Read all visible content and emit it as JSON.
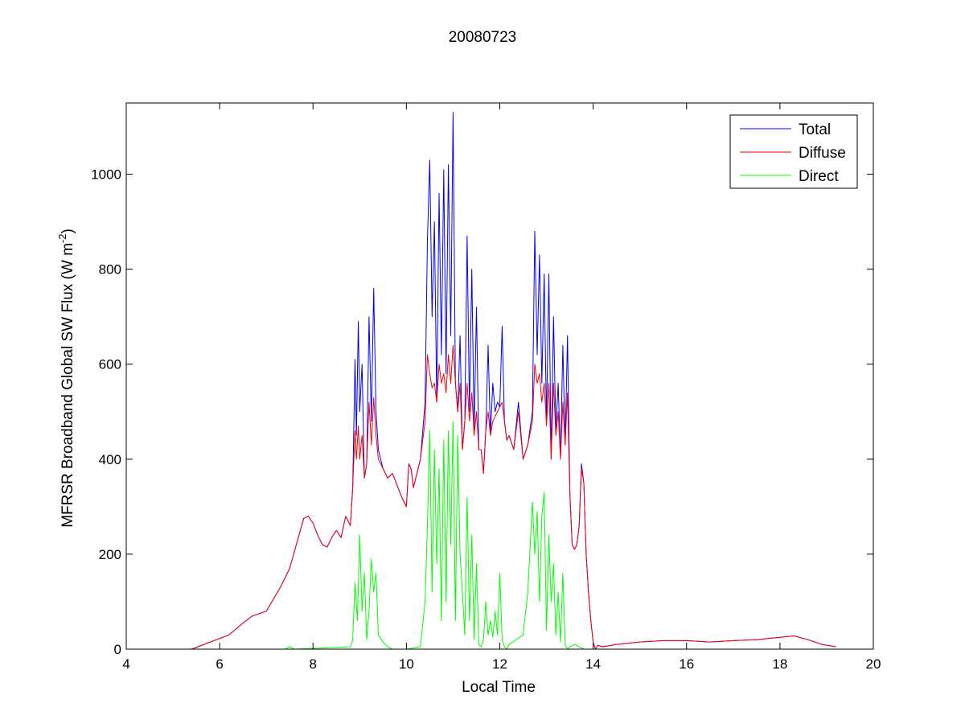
{
  "chart_data": {
    "type": "line",
    "title": "20080723",
    "xlabel": "Local Time",
    "ylabel": "MFRSR Broadband Global SW Flux (W m",
    "ylabel_exp": "-2",
    "ylabel_tail": ")",
    "xlim": [
      4,
      20
    ],
    "ylim": [
      0,
      1150
    ],
    "xticks": [
      4,
      6,
      8,
      10,
      12,
      14,
      16,
      18,
      20
    ],
    "yticks": [
      0,
      200,
      400,
      600,
      800,
      1000
    ],
    "grid": false,
    "legend_position": "top-right",
    "series": [
      {
        "name": "Total",
        "color": "#0000ff",
        "x": [
          5.4,
          5.8,
          6.2,
          6.5,
          6.7,
          7.0,
          7.3,
          7.5,
          7.7,
          7.8,
          7.9,
          8.0,
          8.1,
          8.2,
          8.3,
          8.4,
          8.5,
          8.6,
          8.7,
          8.8,
          8.85,
          8.9,
          8.93,
          8.97,
          9.0,
          9.05,
          9.1,
          9.15,
          9.2,
          9.25,
          9.3,
          9.35,
          9.4,
          9.5,
          9.6,
          9.7,
          9.8,
          9.9,
          10.0,
          10.05,
          10.1,
          10.15,
          10.2,
          10.3,
          10.4,
          10.45,
          10.5,
          10.55,
          10.6,
          10.65,
          10.7,
          10.75,
          10.8,
          10.85,
          10.9,
          10.95,
          11.0,
          11.05,
          11.1,
          11.15,
          11.2,
          11.25,
          11.3,
          11.35,
          11.4,
          11.45,
          11.5,
          11.55,
          11.6,
          11.65,
          11.7,
          11.75,
          11.8,
          11.85,
          11.9,
          11.95,
          12.0,
          12.05,
          12.1,
          12.15,
          12.2,
          12.3,
          12.4,
          12.5,
          12.6,
          12.7,
          12.75,
          12.8,
          12.85,
          12.9,
          12.95,
          13.0,
          13.05,
          13.1,
          13.15,
          13.2,
          13.25,
          13.3,
          13.35,
          13.4,
          13.45,
          13.5,
          13.55,
          13.6,
          13.65,
          13.7,
          13.75,
          13.8,
          13.85,
          13.9,
          13.95,
          14.0,
          14.05,
          14.1,
          14.2,
          14.5,
          15.0,
          15.5,
          16.0,
          16.5,
          17.0,
          17.5,
          18.0,
          18.3,
          18.6,
          18.9,
          19.2
        ],
        "y": [
          0,
          15,
          30,
          55,
          70,
          80,
          130,
          170,
          240,
          275,
          280,
          265,
          240,
          220,
          215,
          235,
          250,
          235,
          280,
          260,
          340,
          610,
          450,
          690,
          500,
          600,
          360,
          390,
          700,
          480,
          760,
          500,
          420,
          380,
          360,
          370,
          345,
          320,
          300,
          390,
          380,
          340,
          360,
          400,
          520,
          860,
          1030,
          700,
          900,
          520,
          960,
          620,
          1010,
          580,
          1020,
          660,
          1130,
          560,
          500,
          660,
          420,
          480,
          870,
          500,
          800,
          460,
          720,
          420,
          420,
          370,
          460,
          640,
          450,
          560,
          500,
          520,
          510,
          680,
          480,
          440,
          450,
          420,
          520,
          400,
          430,
          500,
          880,
          620,
          830,
          560,
          790,
          480,
          790,
          400,
          700,
          460,
          560,
          400,
          640,
          430,
          660,
          330,
          220,
          210,
          220,
          260,
          390,
          350,
          200,
          120,
          60,
          15,
          0,
          8,
          5,
          10,
          15,
          18,
          18,
          15,
          18,
          20,
          25,
          28,
          20,
          10,
          5
        ]
      },
      {
        "name": "Diffuse",
        "color": "#ff0000",
        "x": [
          5.4,
          5.8,
          6.2,
          6.5,
          6.7,
          7.0,
          7.3,
          7.5,
          7.7,
          7.8,
          7.9,
          8.0,
          8.1,
          8.2,
          8.3,
          8.4,
          8.5,
          8.6,
          8.7,
          8.8,
          8.85,
          8.9,
          8.93,
          8.97,
          9.0,
          9.05,
          9.1,
          9.15,
          9.2,
          9.25,
          9.3,
          9.35,
          9.4,
          9.5,
          9.6,
          9.7,
          9.8,
          9.9,
          10.0,
          10.05,
          10.1,
          10.15,
          10.2,
          10.3,
          10.4,
          10.45,
          10.5,
          10.55,
          10.6,
          10.65,
          10.7,
          10.75,
          10.8,
          10.85,
          10.9,
          10.95,
          11.0,
          11.05,
          11.1,
          11.15,
          11.2,
          11.25,
          11.3,
          11.35,
          11.4,
          11.45,
          11.5,
          11.55,
          11.6,
          11.65,
          11.7,
          11.75,
          11.8,
          11.85,
          11.9,
          11.95,
          12.0,
          12.05,
          12.1,
          12.15,
          12.2,
          12.3,
          12.4,
          12.5,
          12.6,
          12.7,
          12.75,
          12.8,
          12.85,
          12.9,
          12.95,
          13.0,
          13.05,
          13.1,
          13.15,
          13.2,
          13.25,
          13.3,
          13.35,
          13.4,
          13.45,
          13.5,
          13.55,
          13.6,
          13.65,
          13.7,
          13.75,
          13.8,
          13.85,
          13.9,
          13.95,
          14.0,
          14.05,
          14.1,
          14.2,
          14.5,
          15.0,
          15.5,
          16.0,
          16.5,
          17.0,
          17.5,
          18.0,
          18.3,
          18.6,
          18.9,
          19.2
        ],
        "y": [
          0,
          15,
          30,
          55,
          70,
          80,
          130,
          170,
          240,
          275,
          280,
          265,
          240,
          220,
          215,
          235,
          250,
          235,
          280,
          260,
          340,
          460,
          400,
          470,
          400,
          450,
          360,
          390,
          520,
          430,
          530,
          450,
          400,
          380,
          360,
          370,
          345,
          320,
          300,
          390,
          380,
          340,
          360,
          400,
          480,
          620,
          580,
          550,
          560,
          520,
          600,
          560,
          580,
          540,
          620,
          560,
          640,
          560,
          500,
          560,
          420,
          480,
          560,
          480,
          540,
          450,
          500,
          420,
          420,
          370,
          460,
          500,
          450,
          480,
          490,
          500,
          510,
          520,
          480,
          440,
          450,
          420,
          500,
          400,
          430,
          480,
          600,
          560,
          580,
          520,
          560,
          470,
          560,
          400,
          560,
          450,
          500,
          400,
          520,
          430,
          540,
          330,
          220,
          210,
          220,
          260,
          380,
          350,
          200,
          120,
          60,
          15,
          0,
          8,
          5,
          10,
          15,
          18,
          18,
          15,
          18,
          20,
          25,
          28,
          20,
          10,
          5
        ]
      },
      {
        "name": "Direct",
        "color": "#00ff00",
        "x": [
          5.4,
          7.4,
          7.5,
          7.6,
          8.8,
          8.85,
          8.9,
          8.95,
          9.0,
          9.05,
          9.1,
          9.15,
          9.2,
          9.25,
          9.3,
          9.35,
          9.4,
          9.5,
          9.6,
          9.7,
          10.0,
          10.3,
          10.4,
          10.45,
          10.5,
          10.55,
          10.6,
          10.65,
          10.7,
          10.75,
          10.8,
          10.85,
          10.9,
          10.95,
          11.0,
          11.05,
          11.1,
          11.15,
          11.2,
          11.25,
          11.3,
          11.35,
          11.4,
          11.45,
          11.5,
          11.55,
          11.6,
          11.65,
          11.7,
          11.75,
          11.8,
          11.85,
          11.9,
          11.95,
          12.0,
          12.05,
          12.1,
          12.15,
          12.2,
          12.5,
          12.6,
          12.7,
          12.75,
          12.8,
          12.85,
          12.9,
          12.95,
          13.0,
          13.05,
          13.1,
          13.15,
          13.2,
          13.25,
          13.3,
          13.35,
          13.4,
          13.45,
          13.5,
          13.6,
          13.8,
          14.0,
          19.2
        ],
        "y": [
          0,
          0,
          5,
          0,
          5,
          20,
          140,
          60,
          240,
          80,
          160,
          20,
          80,
          190,
          120,
          160,
          30,
          15,
          5,
          0,
          0,
          5,
          100,
          260,
          460,
          120,
          420,
          180,
          380,
          60,
          440,
          100,
          460,
          220,
          480,
          60,
          450,
          200,
          120,
          30,
          320,
          60,
          240,
          20,
          180,
          10,
          5,
          20,
          100,
          30,
          60,
          25,
          80,
          30,
          160,
          20,
          5,
          0,
          10,
          30,
          120,
          310,
          200,
          290,
          100,
          280,
          330,
          40,
          240,
          100,
          180,
          30,
          120,
          15,
          160,
          10,
          0,
          5,
          10,
          0,
          0,
          0
        ]
      }
    ]
  }
}
